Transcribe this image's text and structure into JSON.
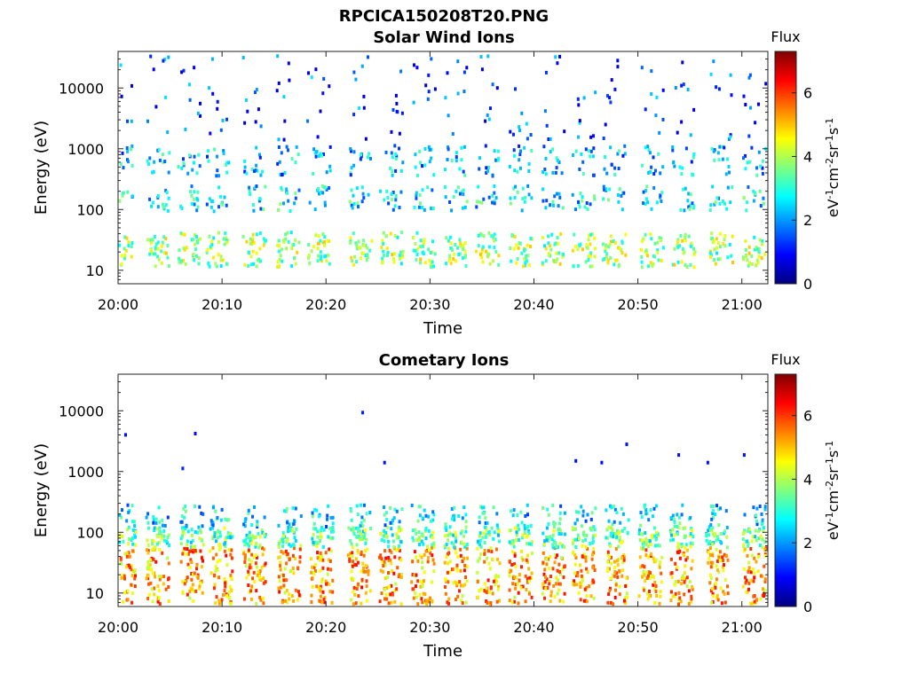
{
  "title": "RPCICA150208T20.PNG",
  "colorbar_stops": [
    "#00007f",
    "#0000ff",
    "#0080ff",
    "#00ffff",
    "#80ff80",
    "#ffff00",
    "#ff8000",
    "#ff0000",
    "#7f0000"
  ],
  "chart_data": [
    {
      "type": "heatmap",
      "title": "Solar Wind Ions",
      "xlabel": "Time",
      "ylabel": "Energy (eV)",
      "x_ticks": [
        "20:00",
        "20:10",
        "20:20",
        "20:30",
        "20:40",
        "20:50",
        "21:00"
      ],
      "x_range_minutes": [
        0,
        62.5
      ],
      "y_ticks": [
        "10",
        "100",
        "1000",
        "10000"
      ],
      "y_tick_values": [
        10,
        100,
        1000,
        10000
      ],
      "y_scale": "log",
      "y_range": [
        6,
        40000
      ],
      "colorbar": {
        "title": "Flux",
        "label": "eV-1cm-2sr-1s-1",
        "ticks": [
          "0",
          "2",
          "4",
          "6"
        ],
        "tick_values": [
          0,
          2,
          4,
          6
        ],
        "range": [
          0,
          7.3
        ]
      },
      "scan_times_minutes": [
        0.1,
        3.6,
        6.5,
        9.3,
        12.8,
        16.0,
        19.0,
        23.0,
        26.0,
        29.1,
        32.2,
        35.2,
        38.4,
        41.5,
        44.5,
        47.4,
        51.1,
        54.1,
        57.7,
        60.9
      ],
      "bands": [
        {
          "energy_eV": [
            12,
            45
          ],
          "level": 3.8
        },
        {
          "energy_eV": [
            100,
            260
          ],
          "level": 2.6
        },
        {
          "energy_eV": [
            380,
            1200
          ],
          "level": 2.2
        },
        {
          "energy_eV": [
            1500,
            36000
          ],
          "level": 1.4
        }
      ]
    },
    {
      "type": "heatmap",
      "title": "Cometary Ions",
      "xlabel": "Time",
      "ylabel": "Energy (eV)",
      "x_ticks": [
        "20:00",
        "20:10",
        "20:20",
        "20:30",
        "20:40",
        "20:50",
        "21:00"
      ],
      "x_range_minutes": [
        0,
        62.5
      ],
      "y_ticks": [
        "10",
        "100",
        "1000",
        "10000"
      ],
      "y_tick_values": [
        10,
        100,
        1000,
        10000
      ],
      "y_scale": "log",
      "y_range": [
        6,
        40000
      ],
      "colorbar": {
        "title": "Flux",
        "label": "eV-1cm-2sr-1s-1",
        "ticks": [
          "0",
          "2",
          "4",
          "6"
        ],
        "tick_values": [
          0,
          2,
          4,
          6
        ],
        "range": [
          0,
          7.3
        ]
      },
      "scan_times_minutes": [
        0.3,
        3.5,
        6.8,
        9.6,
        12.8,
        16.2,
        19.3,
        22.9,
        25.9,
        29.0,
        32.2,
        35.3,
        38.4,
        41.6,
        44.5,
        47.7,
        50.9,
        53.9,
        57.3,
        60.9
      ],
      "bands": [
        {
          "energy_eV": [
            7,
            60
          ],
          "level": 5.2
        },
        {
          "energy_eV": [
            60,
            130
          ],
          "level": 3.4
        },
        {
          "energy_eV": [
            130,
            300
          ],
          "level": 2.5
        }
      ],
      "isolated_points": [
        {
          "t": 0.6,
          "e": 4300,
          "level": 1.0
        },
        {
          "t": 6.1,
          "e": 1200,
          "level": 1.2
        },
        {
          "t": 7.3,
          "e": 4500,
          "level": 1.0
        },
        {
          "t": 23.4,
          "e": 10000,
          "level": 1.1
        },
        {
          "t": 25.5,
          "e": 1500,
          "level": 1.0
        },
        {
          "t": 43.9,
          "e": 1600,
          "level": 1.0
        },
        {
          "t": 46.4,
          "e": 1500,
          "level": 1.0
        },
        {
          "t": 48.8,
          "e": 3000,
          "level": 1.0
        },
        {
          "t": 53.8,
          "e": 2000,
          "level": 1.0
        },
        {
          "t": 56.6,
          "e": 1500,
          "level": 1.0
        },
        {
          "t": 60.1,
          "e": 2000,
          "level": 1.0
        }
      ]
    }
  ]
}
